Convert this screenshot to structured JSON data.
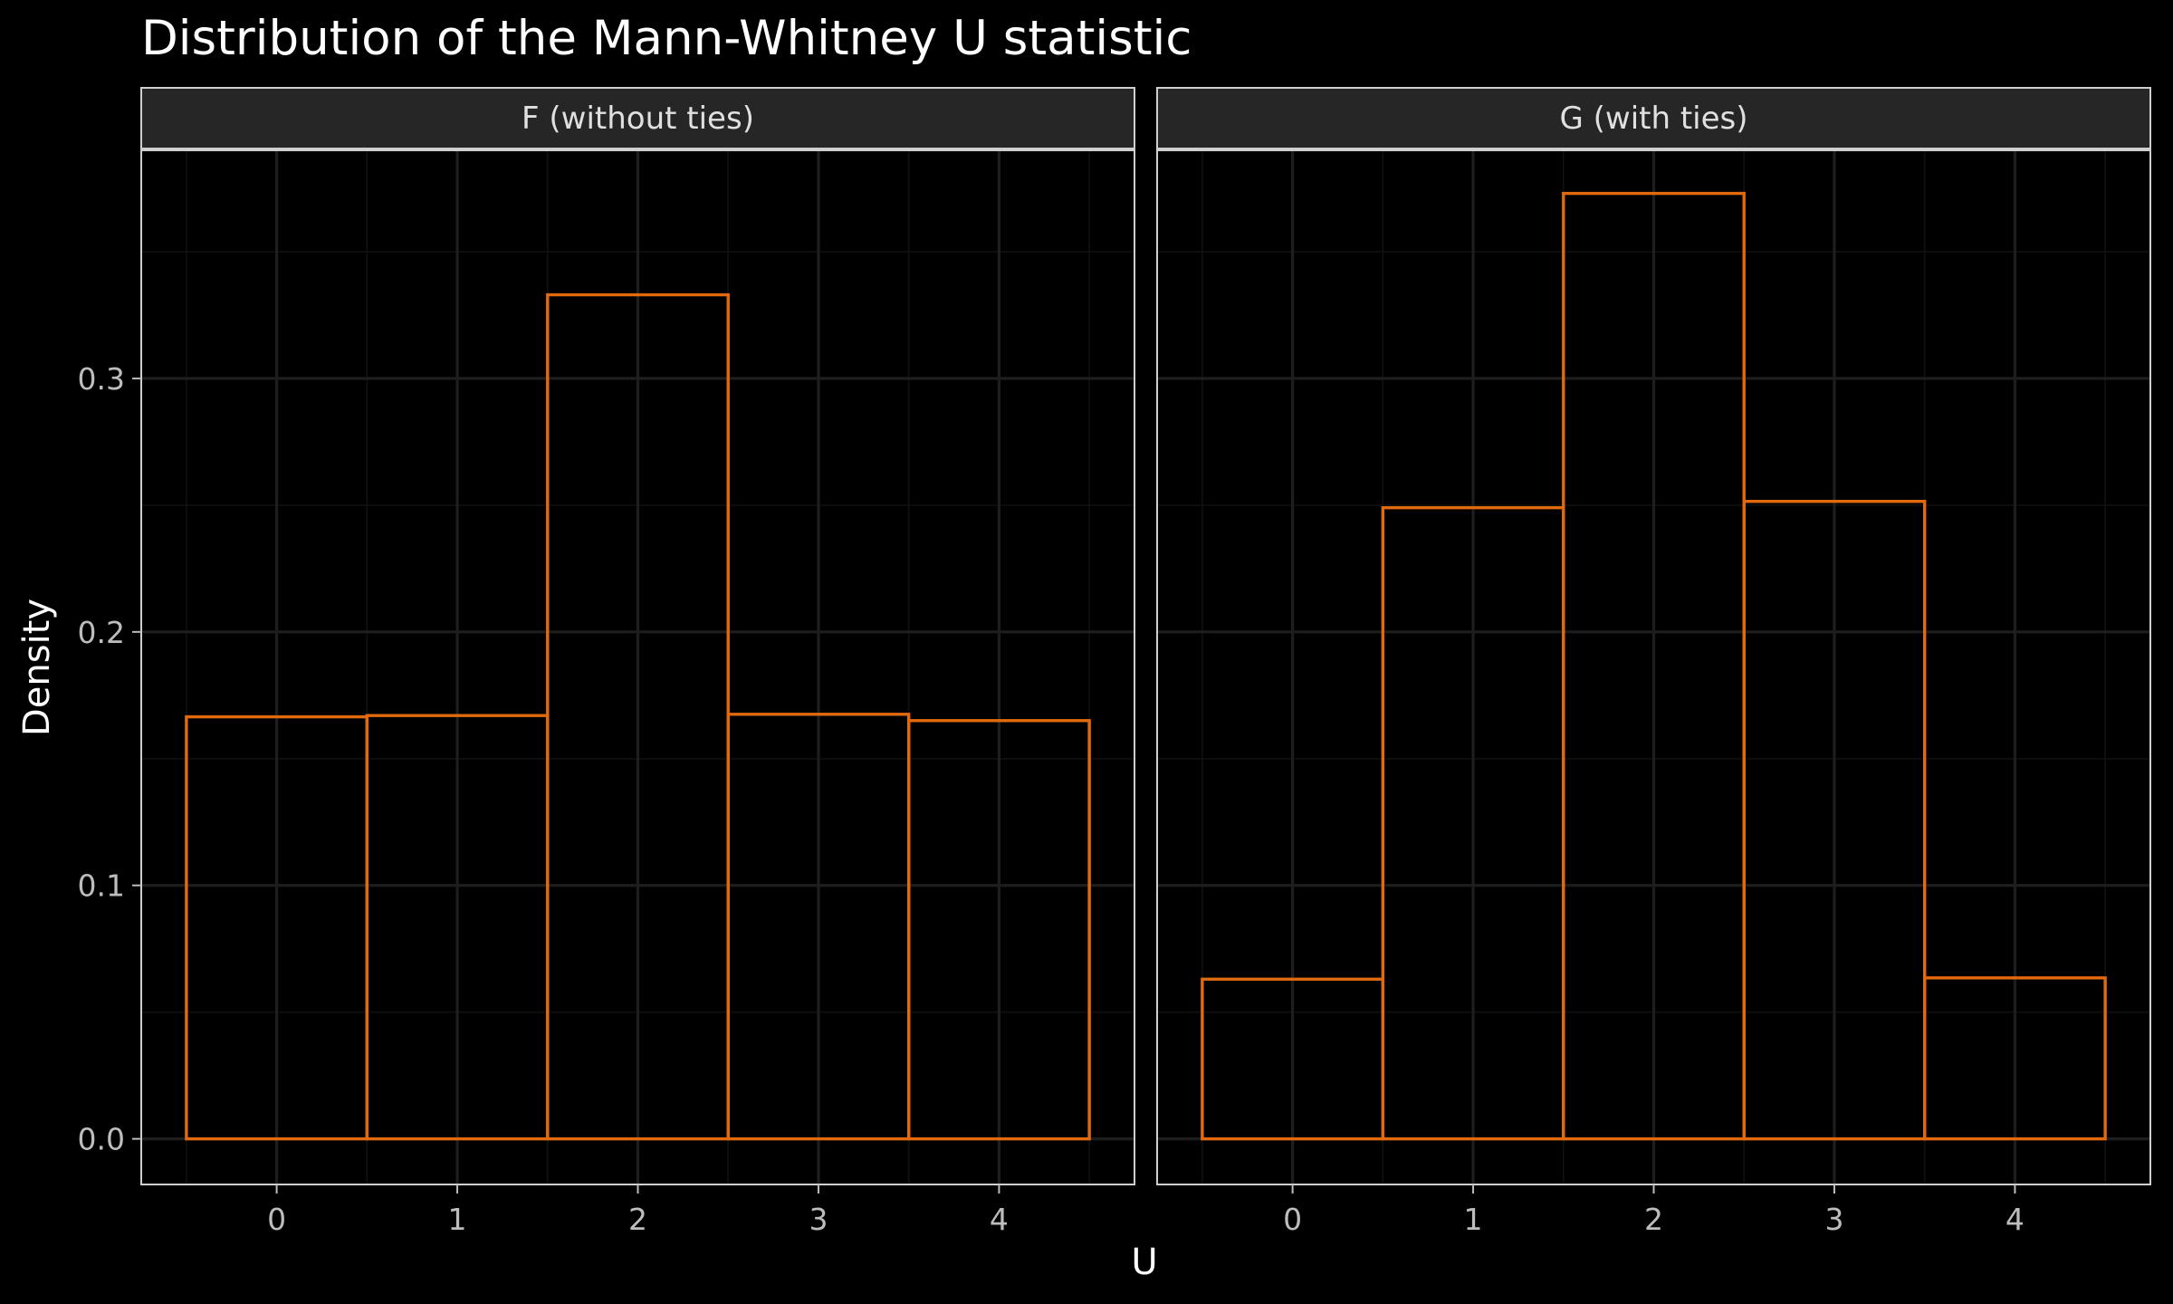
{
  "chart_data": {
    "type": "bar",
    "title": "Distribution of the Mann-Whitney U statistic",
    "xlabel": "U",
    "ylabel": "Density",
    "xlim": [
      -0.75,
      4.75
    ],
    "ylim": [
      -0.018,
      0.39
    ],
    "x_ticks": [
      0,
      1,
      2,
      3,
      4
    ],
    "y_ticks": [
      0.0,
      0.1,
      0.2,
      0.3
    ],
    "y_tick_labels": [
      "0.0",
      "0.1",
      "0.2",
      "0.3"
    ],
    "bin_width": 1,
    "grid": true,
    "bar_outline_color": "#e1690e",
    "background_color": "#000000",
    "panels": [
      {
        "label": "F (without ties)",
        "x": [
          0,
          1,
          2,
          3,
          4
        ],
        "values": [
          0.1665,
          0.167,
          0.333,
          0.1675,
          0.165
        ]
      },
      {
        "label": "G (with ties)",
        "x": [
          0,
          1,
          2,
          3,
          4
        ],
        "values": [
          0.063,
          0.249,
          0.373,
          0.2515,
          0.0635
        ]
      }
    ]
  }
}
